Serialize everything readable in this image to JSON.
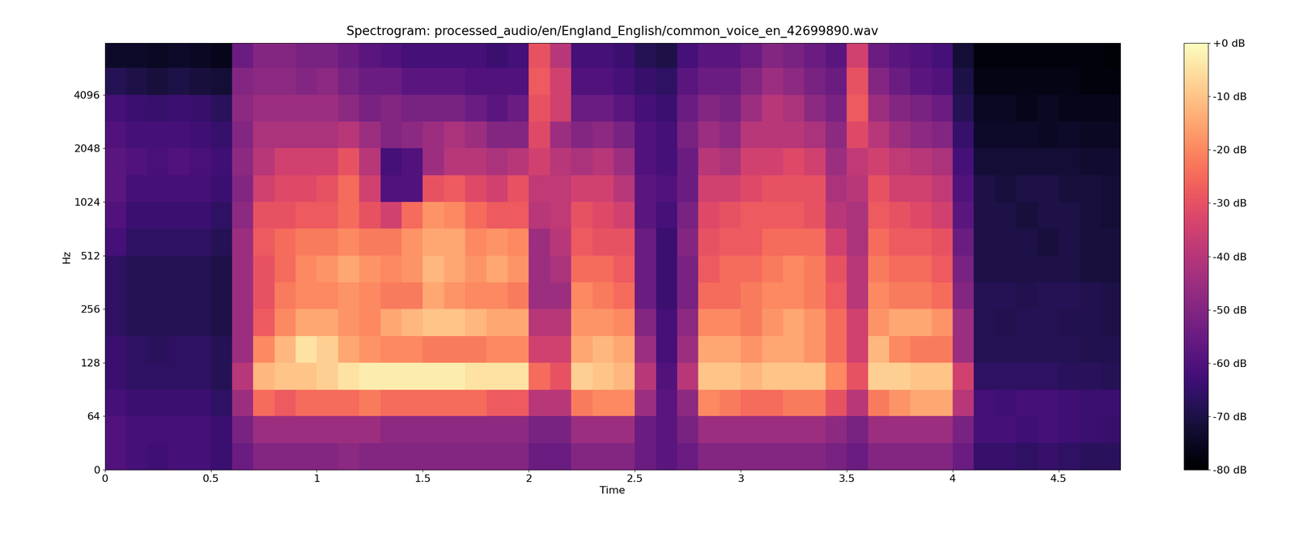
{
  "chart_data": {
    "type": "heatmap",
    "title": "Spectrogram: processed_audio/en/England_English/common_voice_en_42699890.wav",
    "x_label": "Time",
    "y_label": "Hz",
    "log": "y",
    "xlim": [
      0,
      4.79
    ],
    "ylim": [
      0,
      8000
    ],
    "xticks": [
      0,
      0.5,
      1,
      1.5,
      2,
      2.5,
      3,
      3.5,
      4,
      4.5
    ],
    "yticks": [
      0,
      64,
      128,
      256,
      512,
      1024,
      2048,
      4096
    ],
    "color": "magma",
    "colorbar": {
      "range": [
        -80,
        0
      ],
      "ticks": [
        {
          "value": 0,
          "label": "+0 dB"
        },
        {
          "value": -10,
          "label": "-10 dB"
        },
        {
          "value": -20,
          "label": "-20 dB"
        },
        {
          "value": -30,
          "label": "-30 dB"
        },
        {
          "value": -40,
          "label": "-40 dB"
        },
        {
          "value": -50,
          "label": "-50 dB"
        },
        {
          "value": -60,
          "label": "-60 dB"
        },
        {
          "value": -70,
          "label": "-70 dB"
        },
        {
          "value": -80,
          "label": "-80 dB"
        }
      ]
    },
    "time_edges": [
      0,
      0.1,
      0.2,
      0.3,
      0.4,
      0.5,
      0.6,
      0.7,
      0.8,
      0.9,
      1.0,
      1.1,
      1.2,
      1.3,
      1.4,
      1.5,
      1.6,
      1.7,
      1.8,
      1.9,
      2.0,
      2.1,
      2.2,
      2.3,
      2.4,
      2.5,
      2.6,
      2.7,
      2.8,
      2.9,
      3.0,
      3.1,
      3.2,
      3.3,
      3.4,
      3.5,
      3.6,
      3.7,
      3.8,
      3.9,
      4.0,
      4.1,
      4.2,
      4.3,
      4.4,
      4.5,
      4.6,
      4.7,
      4.79
    ],
    "freq_edges": [
      0,
      32,
      64,
      90,
      128,
      180,
      256,
      362,
      512,
      724,
      1024,
      1448,
      2048,
      2896,
      4096,
      5793,
      8000
    ],
    "cells": [
      [
        -60,
        -60,
        -62,
        -64,
        -64,
        -66,
        -66,
        -66,
        -62,
        -60,
        -58,
        -58,
        -60,
        -62,
        -68,
        -74
      ],
      [
        -62,
        -62,
        -64,
        -66,
        -66,
        -68,
        -68,
        -68,
        -66,
        -64,
        -62,
        -60,
        -62,
        -64,
        -70,
        -74
      ],
      [
        -63,
        -62,
        -64,
        -66,
        -67,
        -68,
        -68,
        -68,
        -66,
        -64,
        -62,
        -61,
        -62,
        -65,
        -71,
        -75
      ],
      [
        -62,
        -62,
        -64,
        -66,
        -66,
        -68,
        -68,
        -68,
        -66,
        -64,
        -62,
        -60,
        -62,
        -64,
        -70,
        -74
      ],
      [
        -62,
        -62,
        -64,
        -66,
        -66,
        -68,
        -68,
        -68,
        -66,
        -64,
        -62,
        -61,
        -63,
        -65,
        -71,
        -75
      ],
      [
        -64,
        -64,
        -66,
        -68,
        -68,
        -70,
        -70,
        -70,
        -68,
        -66,
        -64,
        -63,
        -65,
        -67,
        -72,
        -76
      ],
      [
        -55,
        -52,
        -45,
        -40,
        -45,
        -45,
        -45,
        -45,
        -45,
        -48,
        -50,
        -48,
        -50,
        -48,
        -50,
        -55
      ],
      [
        -50,
        -45,
        -25,
        -12,
        -20,
        -28,
        -30,
        -30,
        -28,
        -30,
        -35,
        -40,
        -42,
        -45,
        -48,
        -50
      ],
      [
        -50,
        -45,
        -28,
        -10,
        -12,
        -20,
        -22,
        -25,
        -25,
        -30,
        -32,
        -35,
        -42,
        -45,
        -48,
        -50
      ],
      [
        -50,
        -45,
        -25,
        -10,
        -5,
        -15,
        -20,
        -20,
        -22,
        -28,
        -32,
        -35,
        -42,
        -45,
        -50,
        -52
      ],
      [
        -50,
        -45,
        -25,
        -8,
        -8,
        -15,
        -20,
        -18,
        -22,
        -28,
        -30,
        -35,
        -42,
        -45,
        -48,
        -52
      ],
      [
        -48,
        -45,
        -25,
        -5,
        -15,
        -18,
        -18,
        -15,
        -20,
        -25,
        -25,
        -30,
        -40,
        -48,
        -52,
        -55
      ],
      [
        -50,
        -45,
        -22,
        -3,
        -18,
        -20,
        -20,
        -18,
        -22,
        -30,
        -35,
        -40,
        -45,
        -52,
        -55,
        -58
      ],
      [
        -50,
        -48,
        -25,
        -3,
        -20,
        -15,
        -22,
        -20,
        -22,
        -35,
        -60,
        -62,
        -50,
        -50,
        -55,
        -60
      ],
      [
        -50,
        -48,
        -25,
        -3,
        -20,
        -12,
        -22,
        -18,
        -18,
        -25,
        -60,
        -60,
        -48,
        -52,
        -58,
        -62
      ],
      [
        -50,
        -48,
        -25,
        -3,
        -22,
        -10,
        -15,
        -12,
        -15,
        -18,
        -30,
        -45,
        -45,
        -52,
        -58,
        -62
      ],
      [
        -50,
        -48,
        -25,
        -3,
        -22,
        -10,
        -18,
        -15,
        -15,
        -20,
        -28,
        -40,
        -42,
        -52,
        -58,
        -62
      ],
      [
        -50,
        -48,
        -25,
        -5,
        -22,
        -12,
        -20,
        -18,
        -20,
        -25,
        -32,
        -40,
        -45,
        -55,
        -60,
        -62
      ],
      [
        -50,
        -48,
        -28,
        -5,
        -20,
        -15,
        -20,
        -15,
        -18,
        -28,
        -35,
        -42,
        -50,
        -58,
        -60,
        -64
      ],
      [
        -50,
        -48,
        -28,
        -5,
        -20,
        -15,
        -22,
        -18,
        -20,
        -28,
        -30,
        -40,
        -50,
        -55,
        -60,
        -62
      ],
      [
        -55,
        -52,
        -40,
        -25,
        -35,
        -40,
        -45,
        -45,
        -45,
        -40,
        -38,
        -35,
        -32,
        -30,
        -28,
        -30
      ],
      [
        -55,
        -52,
        -40,
        -30,
        -35,
        -40,
        -45,
        -42,
        -40,
        -38,
        -38,
        -40,
        -45,
        -35,
        -35,
        -40
      ],
      [
        -50,
        -45,
        -22,
        -8,
        -15,
        -18,
        -20,
        -25,
        -28,
        -30,
        -35,
        -42,
        -50,
        -55,
        -60,
        -62
      ],
      [
        -50,
        -45,
        -20,
        -10,
        -12,
        -18,
        -22,
        -25,
        -30,
        -32,
        -35,
        -40,
        -48,
        -55,
        -60,
        -62
      ],
      [
        -50,
        -45,
        -20,
        -12,
        -15,
        -20,
        -25,
        -28,
        -30,
        -35,
        -40,
        -45,
        -52,
        -58,
        -62,
        -64
      ],
      [
        -55,
        -55,
        -45,
        -40,
        -45,
        -50,
        -55,
        -55,
        -55,
        -58,
        -58,
        -60,
        -60,
        -62,
        -65,
        -68
      ],
      [
        -58,
        -58,
        -58,
        -60,
        -62,
        -62,
        -64,
        -64,
        -64,
        -62,
        -60,
        -62,
        -62,
        -64,
        -66,
        -70
      ],
      [
        -55,
        -52,
        -48,
        -40,
        -45,
        -48,
        -52,
        -52,
        -50,
        -52,
        -55,
        -55,
        -52,
        -55,
        -58,
        -62
      ],
      [
        -50,
        -45,
        -20,
        -10,
        -15,
        -20,
        -25,
        -28,
        -30,
        -32,
        -35,
        -40,
        -45,
        -50,
        -55,
        -58
      ],
      [
        -50,
        -45,
        -22,
        -10,
        -15,
        -20,
        -25,
        -25,
        -28,
        -30,
        -35,
        -42,
        -48,
        -52,
        -55,
        -58
      ],
      [
        -50,
        -45,
        -25,
        -12,
        -18,
        -22,
        -22,
        -25,
        -28,
        -28,
        -32,
        -35,
        -40,
        -45,
        -50,
        -55
      ],
      [
        -50,
        -45,
        -25,
        -10,
        -15,
        -18,
        -20,
        -22,
        -25,
        -28,
        -30,
        -35,
        -40,
        -40,
        -45,
        -50
      ],
      [
        -50,
        -45,
        -22,
        -10,
        -15,
        -15,
        -20,
        -20,
        -25,
        -28,
        -30,
        -32,
        -40,
        -42,
        -48,
        -52
      ],
      [
        -50,
        -45,
        -22,
        -10,
        -18,
        -18,
        -22,
        -22,
        -25,
        -30,
        -30,
        -35,
        -42,
        -48,
        -52,
        -55
      ],
      [
        -52,
        -48,
        -30,
        -20,
        -25,
        -25,
        -28,
        -30,
        -35,
        -40,
        -42,
        -45,
        -48,
        -52,
        -55,
        -58
      ],
      [
        -55,
        -52,
        -40,
        -30,
        -35,
        -35,
        -40,
        -40,
        -42,
        -42,
        -40,
        -38,
        -32,
        -28,
        -30,
        -35
      ],
      [
        -50,
        -45,
        -22,
        -8,
        -12,
        -18,
        -20,
        -22,
        -25,
        -28,
        -30,
        -35,
        -40,
        -45,
        -50,
        -55
      ],
      [
        -50,
        -45,
        -18,
        -8,
        -20,
        -15,
        -22,
        -25,
        -28,
        -30,
        -35,
        -38,
        -45,
        -50,
        -55,
        -58
      ],
      [
        -50,
        -45,
        -15,
        -10,
        -22,
        -15,
        -22,
        -25,
        -28,
        -32,
        -35,
        -40,
        -48,
        -52,
        -58,
        -60
      ],
      [
        -50,
        -45,
        -15,
        -10,
        -22,
        -18,
        -25,
        -28,
        -30,
        -35,
        -38,
        -42,
        -50,
        -55,
        -60,
        -62
      ],
      [
        -55,
        -52,
        -40,
        -35,
        -45,
        -45,
        -50,
        -52,
        -55,
        -58,
        -60,
        -62,
        -65,
        -68,
        -70,
        -72
      ],
      [
        -65,
        -62,
        -62,
        -66,
        -68,
        -68,
        -68,
        -70,
        -70,
        -70,
        -70,
        -72,
        -74,
        -75,
        -77,
        -78
      ],
      [
        -65,
        -62,
        -63,
        -66,
        -68,
        -69,
        -68,
        -70,
        -70,
        -70,
        -71,
        -72,
        -74,
        -75,
        -77,
        -78
      ],
      [
        -66,
        -63,
        -62,
        -66,
        -68,
        -68,
        -69,
        -70,
        -70,
        -71,
        -70,
        -72,
        -74,
        -76,
        -77,
        -78
      ],
      [
        -65,
        -62,
        -62,
        -66,
        -68,
        -68,
        -68,
        -70,
        -71,
        -70,
        -70,
        -72,
        -75,
        -75,
        -77,
        -78
      ],
      [
        -66,
        -63,
        -63,
        -67,
        -68,
        -69,
        -68,
        -70,
        -70,
        -70,
        -71,
        -72,
        -74,
        -76,
        -77,
        -78
      ],
      [
        -67,
        -64,
        -64,
        -67,
        -69,
        -69,
        -69,
        -71,
        -71,
        -71,
        -71,
        -73,
        -75,
        -76,
        -78,
        -78
      ],
      [
        -67,
        -65,
        -64,
        -68,
        -69,
        -70,
        -70,
        -71,
        -71,
        -72,
        -72,
        -73,
        -75,
        -76,
        -78,
        -79
      ]
    ]
  }
}
